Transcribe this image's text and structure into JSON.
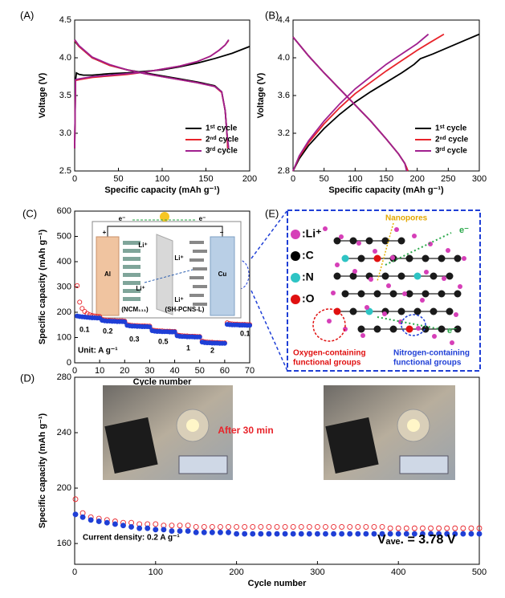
{
  "chart_data": [
    {
      "type": "line",
      "label": "(A)",
      "xlabel": "Specific capacity (mAh g⁻¹)",
      "ylabel": "Voltage (V)",
      "xlim": [
        0,
        200
      ],
      "xticks": [
        0,
        50,
        100,
        150,
        200
      ],
      "ylim": [
        2.5,
        4.5
      ],
      "yticks": [
        2.5,
        {
          "value": 3,
          "label": "3.0"
        },
        3.5,
        {
          "value": 4,
          "label": "4.0"
        },
        4.5
      ],
      "legend": "lower right",
      "series": [
        {
          "name": "1ˢᵗ cycle",
          "color": "#000000",
          "x": [
            0,
            1,
            2,
            5,
            10,
            20,
            40,
            60,
            80,
            100,
            120,
            140,
            160,
            180,
            200,
            null,
            0,
            5,
            20,
            40,
            60,
            80,
            100,
            120,
            140,
            160,
            168,
            172,
            174,
            175
          ],
          "values": [
            2.8,
            3.7,
            3.8,
            3.78,
            3.77,
            3.77,
            3.79,
            3.8,
            3.82,
            3.84,
            3.88,
            3.93,
            3.99,
            4.06,
            4.15,
            null,
            4.22,
            4.15,
            4.0,
            3.9,
            3.84,
            3.8,
            3.76,
            3.72,
            3.68,
            3.63,
            3.55,
            3.3,
            3.0,
            2.8
          ]
        },
        {
          "name": "2ⁿᵈ cycle",
          "color": "#e8232a",
          "x": [
            0,
            1,
            5,
            20,
            40,
            60,
            80,
            100,
            120,
            140,
            155,
            165,
            172,
            176,
            null,
            0,
            5,
            20,
            40,
            60,
            80,
            100,
            120,
            140,
            160,
            168,
            172,
            174,
            175
          ],
          "values": [
            2.8,
            3.7,
            3.71,
            3.74,
            3.76,
            3.78,
            3.81,
            3.85,
            3.89,
            3.95,
            4.02,
            4.1,
            4.17,
            4.23,
            null,
            4.23,
            4.15,
            4.0,
            3.9,
            3.84,
            3.79,
            3.75,
            3.71,
            3.67,
            3.62,
            3.54,
            3.3,
            3.0,
            2.8
          ]
        },
        {
          "name": "3ʳᵈ cycle",
          "color": "#a0208f",
          "x": [
            0,
            1,
            5,
            20,
            40,
            60,
            80,
            100,
            120,
            140,
            155,
            165,
            172,
            176,
            null,
            0,
            5,
            20,
            40,
            60,
            80,
            100,
            120,
            140,
            160,
            168,
            172,
            174,
            176
          ],
          "values": [
            2.8,
            3.71,
            3.72,
            3.75,
            3.77,
            3.79,
            3.81,
            3.85,
            3.89,
            3.95,
            4.02,
            4.1,
            4.17,
            4.24,
            null,
            4.24,
            4.16,
            4.01,
            3.91,
            3.84,
            3.79,
            3.75,
            3.71,
            3.67,
            3.62,
            3.55,
            3.3,
            3.0,
            2.8
          ]
        }
      ]
    },
    {
      "type": "line",
      "label": "(B)",
      "xlabel": "Specific capacity (mAh g⁻¹)",
      "ylabel": "Voltage (V)",
      "xlim": [
        0,
        300
      ],
      "xticks": [
        0,
        50,
        100,
        150,
        200,
        250,
        300
      ],
      "ylim": [
        2.8,
        4.4
      ],
      "yticks": [
        2.8,
        3.2,
        3.6,
        {
          "value": 4,
          "label": "4.0"
        },
        4.4
      ],
      "legend": "lower right",
      "series": [
        {
          "name": "1ˢᵗ cycle",
          "color": "#000000",
          "x": [
            0,
            10,
            25,
            50,
            75,
            100,
            125,
            150,
            175,
            195,
            205,
            225,
            250,
            275,
            300,
            null,
            0,
            25,
            50,
            75,
            100,
            125,
            150,
            170,
            180,
            185
          ],
          "values": [
            2.8,
            2.93,
            3.07,
            3.25,
            3.4,
            3.53,
            3.64,
            3.74,
            3.84,
            3.93,
            3.99,
            4.04,
            4.11,
            4.18,
            4.25,
            null,
            4.22,
            4.02,
            3.84,
            3.67,
            3.5,
            3.33,
            3.14,
            2.98,
            2.88,
            2.8
          ]
        },
        {
          "name": "2ⁿᵈ cycle",
          "color": "#e8232a",
          "x": [
            0,
            10,
            25,
            50,
            75,
            100,
            125,
            150,
            175,
            200,
            220,
            243,
            null,
            0,
            25,
            50,
            75,
            100,
            125,
            150,
            170,
            180,
            185
          ],
          "values": [
            2.8,
            2.95,
            3.1,
            3.3,
            3.47,
            3.62,
            3.74,
            3.86,
            3.97,
            4.08,
            4.16,
            4.25,
            null,
            4.22,
            4.02,
            3.84,
            3.67,
            3.5,
            3.33,
            3.14,
            2.98,
            2.88,
            2.8
          ]
        },
        {
          "name": "3ʳᵈ cycle",
          "color": "#a0208f",
          "x": [
            0,
            10,
            25,
            50,
            75,
            100,
            125,
            150,
            175,
            200,
            218,
            null,
            0,
            25,
            50,
            75,
            100,
            125,
            150,
            170,
            180,
            183
          ],
          "values": [
            2.8,
            2.96,
            3.12,
            3.33,
            3.51,
            3.67,
            3.8,
            3.93,
            4.04,
            4.15,
            4.25,
            null,
            4.22,
            4.02,
            3.84,
            3.67,
            3.5,
            3.33,
            3.14,
            2.98,
            2.88,
            2.8
          ]
        }
      ]
    },
    {
      "type": "scatter",
      "label": "(C)",
      "xlabel": "Cycle number",
      "ylabel": "Specific capacity (mAh g⁻¹)",
      "xlim": [
        0,
        70
      ],
      "xticks": [
        0,
        10,
        20,
        30,
        40,
        50,
        60,
        70
      ],
      "ylim": [
        0,
        600
      ],
      "yticks": [
        0,
        100,
        200,
        300,
        400,
        500,
        600
      ],
      "annotations": [
        "0.1",
        "0.2",
        "0.3",
        "0.5",
        "1",
        "2",
        "0.1",
        "Unit: A g⁻¹"
      ],
      "inset": {
        "labels": [
          "e⁻",
          "e⁻",
          "+",
          "−",
          "Al",
          "Cu",
          "(NCM₁₁₁)",
          "(SH-PCNS-L)",
          "Li⁺",
          "Li⁺",
          "Li⁺",
          "Li⁺"
        ]
      },
      "series": [
        {
          "color": "#e8232a",
          "marker": "open",
          "x": [
            1,
            2,
            3,
            4,
            5,
            6,
            7,
            8,
            9,
            10,
            11,
            12,
            13,
            14,
            15,
            16,
            17,
            18,
            19,
            20,
            21,
            22,
            23,
            24,
            25,
            26,
            27,
            28,
            29,
            30,
            31,
            32,
            33,
            34,
            35,
            36,
            37,
            38,
            39,
            40,
            41,
            42,
            43,
            44,
            45,
            46,
            47,
            48,
            49,
            50,
            51,
            52,
            53,
            54,
            55,
            56,
            57,
            58,
            59,
            60,
            61,
            62,
            63,
            64,
            65,
            66,
            67,
            68,
            69,
            70
          ],
          "values": [
            305,
            240,
            215,
            203,
            195,
            190,
            187,
            185,
            184,
            183,
            172,
            170,
            169,
            168,
            167,
            167,
            166,
            166,
            166,
            165,
            151,
            149,
            148,
            147,
            147,
            146,
            146,
            146,
            145,
            145,
            130,
            128,
            127,
            126,
            126,
            125,
            125,
            125,
            124,
            124,
            110,
            108,
            107,
            106,
            106,
            105,
            105,
            105,
            104,
            104,
            86,
            83,
            82,
            81,
            81,
            80,
            80,
            80,
            79,
            79,
            158,
            155,
            154,
            153,
            153,
            152,
            152,
            152,
            151,
            151
          ]
        },
        {
          "color": "#1f3fd6",
          "marker": "filled",
          "x": [
            1,
            2,
            3,
            4,
            5,
            6,
            7,
            8,
            9,
            10,
            11,
            12,
            13,
            14,
            15,
            16,
            17,
            18,
            19,
            20,
            21,
            22,
            23,
            24,
            25,
            26,
            27,
            28,
            29,
            30,
            31,
            32,
            33,
            34,
            35,
            36,
            37,
            38,
            39,
            40,
            41,
            42,
            43,
            44,
            45,
            46,
            47,
            48,
            49,
            50,
            51,
            52,
            53,
            54,
            55,
            56,
            57,
            58,
            59,
            60,
            61,
            62,
            63,
            64,
            65,
            66,
            67,
            68,
            69,
            70
          ],
          "values": [
            185,
            183,
            182,
            181,
            180,
            179,
            178,
            178,
            177,
            177,
            168,
            166,
            165,
            165,
            164,
            164,
            163,
            163,
            163,
            162,
            148,
            146,
            145,
            145,
            144,
            144,
            143,
            143,
            143,
            142,
            127,
            125,
            124,
            124,
            123,
            123,
            123,
            122,
            122,
            122,
            107,
            105,
            104,
            104,
            103,
            103,
            103,
            102,
            102,
            102,
            82,
            80,
            79,
            79,
            78,
            78,
            78,
            77,
            77,
            77,
            152,
            151,
            150,
            150,
            150,
            149,
            149,
            149,
            148,
            148
          ]
        }
      ]
    },
    {
      "type": "scatter",
      "label": "(D)",
      "xlabel": "Cycle number",
      "ylabel": "Specific capacity (mAh g⁻¹)",
      "xlim": [
        0,
        500
      ],
      "xticks": [
        0,
        100,
        200,
        300,
        400,
        500
      ],
      "ylim": [
        145,
        280
      ],
      "yticks": [
        160,
        200,
        240,
        280
      ],
      "annotations": [
        "After 30 min",
        "Current density: 0.2 A g⁻¹",
        "Vₐᵥₑ. = 3.78 V"
      ],
      "series": [
        {
          "color": "#e8232a",
          "marker": "open",
          "x": [
            1,
            10,
            20,
            30,
            40,
            50,
            60,
            70,
            80,
            90,
            100,
            110,
            120,
            130,
            140,
            150,
            160,
            170,
            180,
            190,
            200,
            210,
            220,
            230,
            240,
            250,
            260,
            270,
            280,
            290,
            300,
            310,
            320,
            330,
            340,
            350,
            360,
            370,
            380,
            390,
            400,
            410,
            420,
            430,
            440,
            450,
            460,
            470,
            480,
            490,
            500
          ],
          "values": [
            192,
            182,
            179,
            178,
            177,
            176,
            175,
            175,
            174,
            174,
            174,
            173,
            173,
            173,
            173,
            172,
            172,
            172,
            172,
            172,
            172,
            172,
            172,
            172,
            172,
            172,
            172,
            172,
            172,
            172,
            172,
            172,
            172,
            172,
            172,
            172,
            172,
            172,
            172,
            171,
            171,
            171,
            171,
            171,
            171,
            171,
            171,
            171,
            171,
            171,
            171
          ]
        },
        {
          "color": "#1f3fd6",
          "marker": "filled",
          "x": [
            1,
            10,
            20,
            30,
            40,
            50,
            60,
            70,
            80,
            90,
            100,
            110,
            120,
            130,
            140,
            150,
            160,
            170,
            180,
            190,
            200,
            210,
            220,
            230,
            240,
            250,
            260,
            270,
            280,
            290,
            300,
            310,
            320,
            330,
            340,
            350,
            360,
            370,
            380,
            390,
            400,
            410,
            420,
            430,
            440,
            450,
            460,
            470,
            480,
            490,
            500
          ],
          "values": [
            181,
            179,
            177,
            176,
            175,
            174,
            173,
            172,
            171,
            171,
            170,
            170,
            169,
            169,
            169,
            168,
            168,
            168,
            168,
            168,
            167,
            167,
            167,
            167,
            167,
            167,
            167,
            167,
            167,
            167,
            167,
            167,
            167,
            167,
            167,
            167,
            167,
            167,
            167,
            167,
            167,
            167,
            167,
            167,
            167,
            167,
            167,
            167,
            167,
            167,
            167
          ]
        }
      ]
    }
  ],
  "diagram": {
    "label": "(E)",
    "legend": [
      ":Li⁺",
      ":C",
      ":N",
      ":O"
    ],
    "nanopores": "Nanopores",
    "electrons": [
      "e⁻",
      "e⁻"
    ],
    "oxygen": [
      "Oxygen-containing",
      "functional groups"
    ],
    "nitrogen": [
      "Nitrogen-containing",
      "functional groups"
    ]
  }
}
